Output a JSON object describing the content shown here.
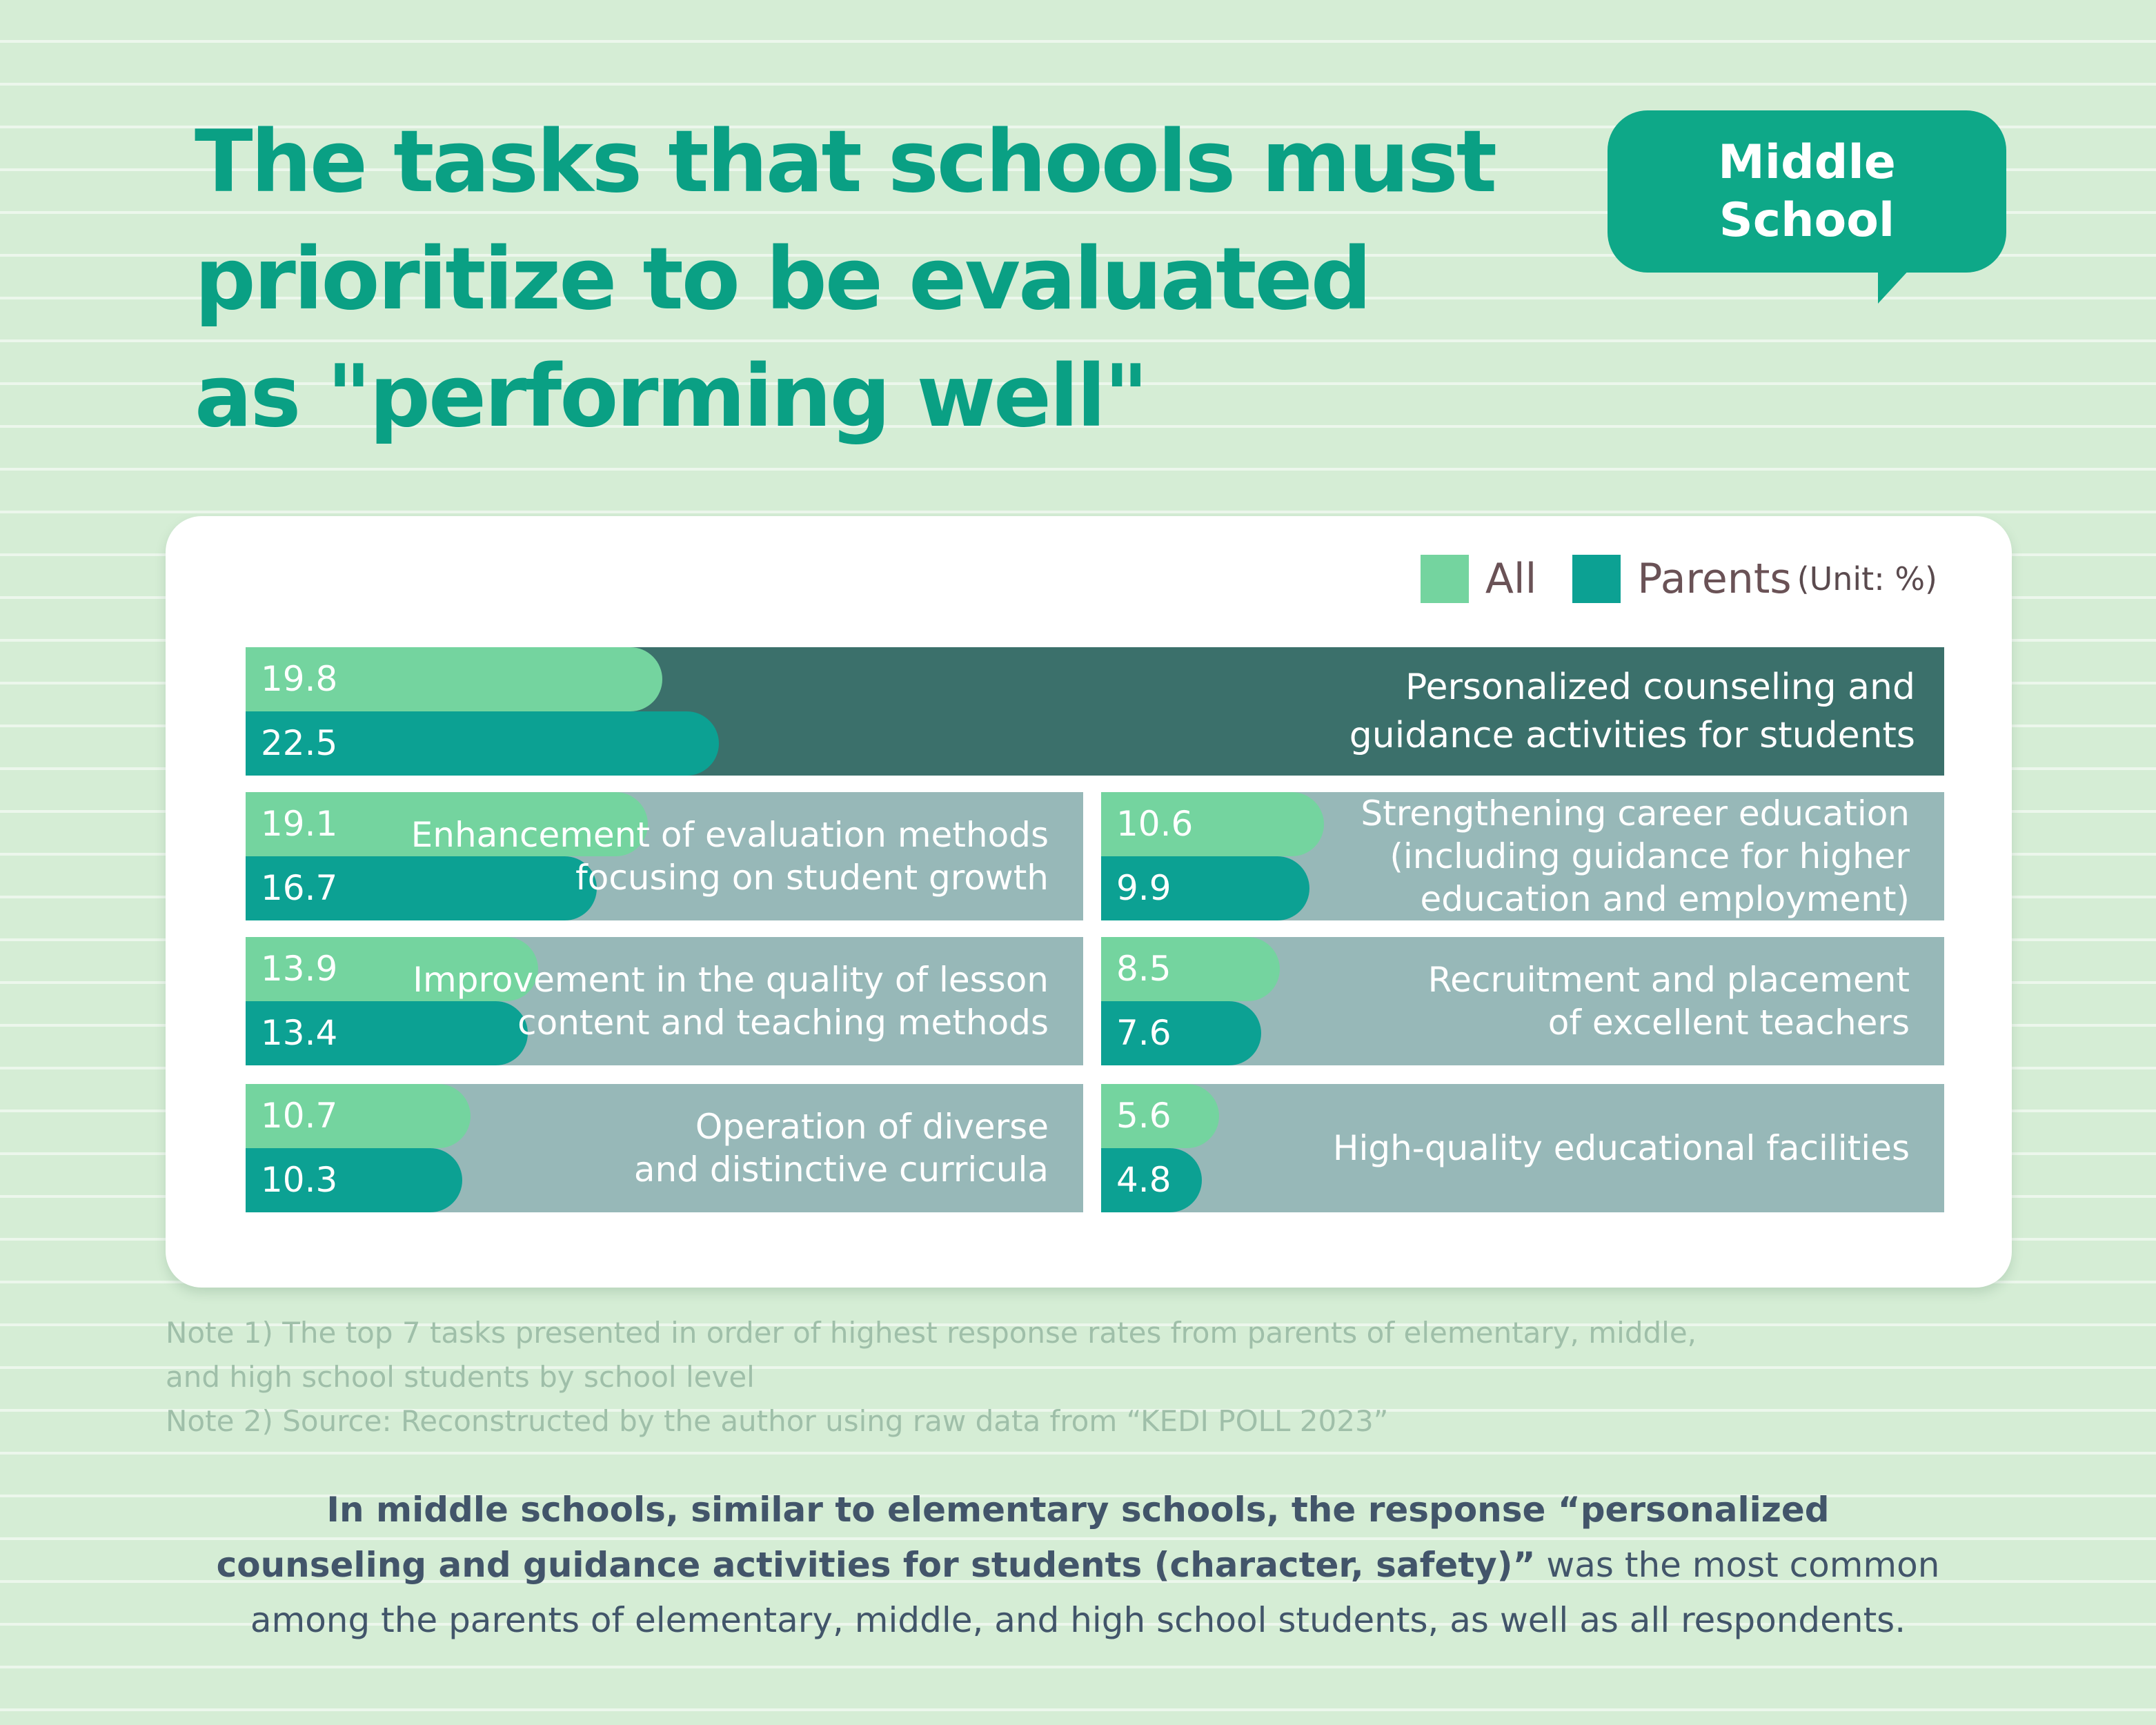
{
  "title_lines": [
    "The tasks that schools must",
    "prioritize to be evaluated",
    "as \"performing well\""
  ],
  "badge_lines": [
    "Middle",
    "School"
  ],
  "colors": {
    "all": "#74d49f",
    "parents": "#0ca193",
    "title": "#0aa084",
    "featured_panel": "#3b706b",
    "panel": "#97b8b8"
  },
  "legend": {
    "all_label": "All",
    "parents_label": "Parents",
    "unit": "(Unit: %)"
  },
  "chart_data": {
    "type": "bar",
    "unit": "%",
    "series_names": [
      "All",
      "Parents"
    ],
    "scale_max": 100,
    "categories": [
      {
        "label_lines": [
          "Personalized counseling and",
          "guidance activities for students"
        ],
        "all": 19.8,
        "parents": 22.5,
        "featured": true
      },
      {
        "label_lines": [
          "Enhancement of evaluation methods",
          "focusing on student growth"
        ],
        "all": 19.1,
        "parents": 16.7
      },
      {
        "label_lines": [
          "Strengthening career education",
          "(including guidance for higher",
          "education and employment)"
        ],
        "all": 10.6,
        "parents": 9.9
      },
      {
        "label_lines": [
          "Improvement in the quality of lesson",
          "content and teaching methods"
        ],
        "all": 13.9,
        "parents": 13.4
      },
      {
        "label_lines": [
          "Recruitment and placement",
          "of excellent teachers"
        ],
        "all": 8.5,
        "parents": 7.6
      },
      {
        "label_lines": [
          "Operation of diverse",
          "and distinctive curricula"
        ],
        "all": 10.7,
        "parents": 10.3
      },
      {
        "label_lines": [
          "High-quality educational facilities"
        ],
        "all": 5.6,
        "parents": 4.8
      }
    ]
  },
  "notes": [
    "Note 1) The top 7 tasks presented in order of highest response rates from parents of elementary, middle,",
    "and high school students by school level",
    "Note 2) Source: Reconstructed by the author using raw data from “KEDI POLL 2023”"
  ],
  "summary": {
    "line1_bold": "In middle schools, similar to elementary schools, the response “personalized",
    "line2_bold": "counseling and guidance activities for students (character, safety)”",
    "line2_rest": " was the most common",
    "line3": "among the parents of elementary, middle, and high school students, as well as all respondents."
  }
}
